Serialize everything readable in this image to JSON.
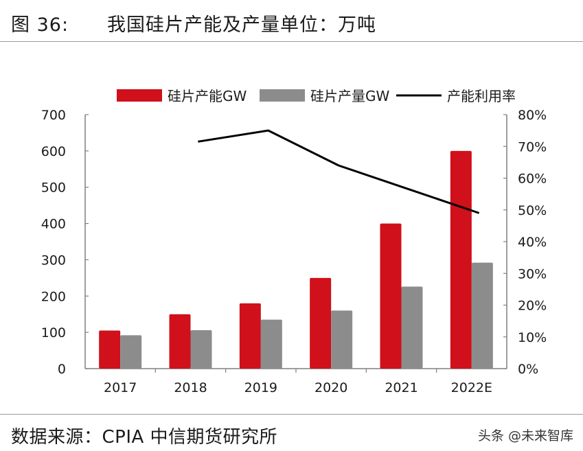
{
  "header": {
    "figure_label": "图 36:",
    "title": "我国硅片产能及产量单位：万吨"
  },
  "footer": {
    "source": "数据来源：CPIA  中信期货研究所",
    "watermark": "头条 @未来智库"
  },
  "colors": {
    "capacity": "#d0101a",
    "production": "#8c8c8c",
    "utilization": "#000000",
    "axis": "#7f7f7f"
  },
  "chart_data": {
    "type": "bar",
    "categories": [
      "2017",
      "2018",
      "2019",
      "2020",
      "2021",
      "2022E"
    ],
    "series": [
      {
        "name": "硅片产能GW",
        "kind": "bar",
        "axis": "left",
        "values": [
          105,
          150,
          180,
          250,
          400,
          600
        ]
      },
      {
        "name": "硅片产量GW",
        "kind": "bar",
        "axis": "left",
        "values": [
          92,
          106,
          135,
          160,
          226,
          292
        ]
      },
      {
        "name": "产能利用率",
        "kind": "line",
        "axis": "right",
        "values": [
          null,
          71.5,
          75.0,
          64.0,
          56.5,
          49.0
        ]
      }
    ],
    "left_axis": {
      "min": 0,
      "max": 700,
      "ticks": [
        "0",
        "100",
        "200",
        "300",
        "400",
        "500",
        "600",
        "700"
      ]
    },
    "right_axis": {
      "min": 0,
      "max": 80,
      "ticks": [
        "0%",
        "10%",
        "20%",
        "30%",
        "40%",
        "50%",
        "60%",
        "70%",
        "80%"
      ]
    },
    "legend_position": "top"
  }
}
